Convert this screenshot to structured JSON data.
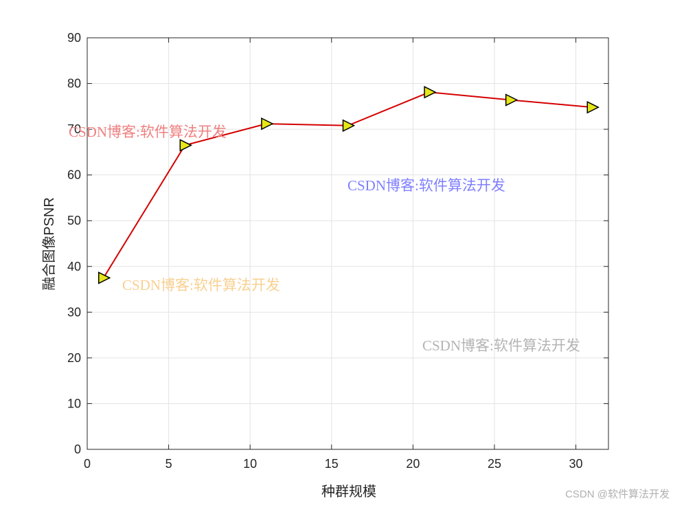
{
  "chart_data": {
    "type": "line",
    "xlabel": "种群规模",
    "ylabel": "融合图像PSNR",
    "x": [
      1,
      6,
      11,
      16,
      21,
      26,
      31
    ],
    "series": [
      {
        "color": "#d40000",
        "marker_color": "#e6e619",
        "values": [
          37.5,
          66.5,
          71.2,
          70.8,
          78.1,
          76.4,
          74.8
        ]
      }
    ],
    "xlim": [
      0,
      32
    ],
    "xticks": [
      0,
      5,
      10,
      15,
      20,
      25,
      30
    ],
    "ylim": [
      0,
      90
    ],
    "yticks": [
      0,
      10,
      20,
      30,
      40,
      50,
      60,
      70,
      80,
      90
    ],
    "grid": true
  },
  "watermarks": [
    {
      "text": "CSDN博客:软件算法开发",
      "color": "#f08080"
    },
    {
      "text": "CSDN博客:软件算法开发",
      "color": "#7f7fff"
    },
    {
      "text": "CSDN博客:软件算法开发",
      "color": "#f8d090"
    },
    {
      "text": "CSDN博客:软件算法开发",
      "color": "#b4b4b4"
    }
  ],
  "footer": "CSDN @软件算法开发"
}
